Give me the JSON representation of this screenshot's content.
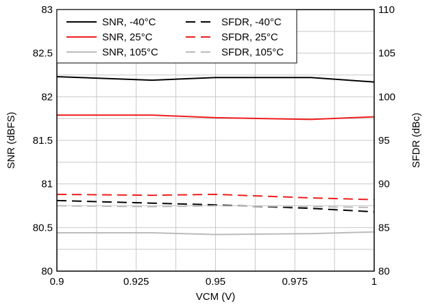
{
  "chart_data": {
    "type": "line",
    "title": "",
    "xlabel": "VCM (V)",
    "ylabel_left": "SNR (dBFS)",
    "ylabel_right": "SFDR (dBc)",
    "xlim": [
      0.9,
      1.0
    ],
    "ylim_left": [
      80,
      83
    ],
    "ylim_right": [
      80,
      110
    ],
    "x_ticks": [
      "0.9",
      "0.925",
      "0.95",
      "0.975",
      "1"
    ],
    "y_left_ticks": [
      "80",
      "80.5",
      "81",
      "81.5",
      "82",
      "82.5",
      "83"
    ],
    "y_right_ticks": [
      "80",
      "85",
      "90",
      "95",
      "100",
      "105",
      "110"
    ],
    "grid": true,
    "legend_position": "top-left",
    "series": [
      {
        "name": "SNR, -40°C",
        "axis": "left",
        "color": "#000000",
        "dash": "solid",
        "x": [
          0.9,
          0.93,
          0.95,
          0.98,
          1.0
        ],
        "values": [
          82.23,
          82.19,
          82.22,
          82.22,
          82.17
        ]
      },
      {
        "name": "SFDR, -40°C",
        "axis": "right",
        "color": "#000000",
        "dash": "dashed",
        "x": [
          0.9,
          0.93,
          0.95,
          0.98,
          1.0
        ],
        "values": [
          88.1,
          87.8,
          87.6,
          87.2,
          86.8
        ]
      },
      {
        "name": "SNR, 25°C",
        "axis": "left",
        "color": "#ee1c1c",
        "dash": "solid",
        "x": [
          0.9,
          0.93,
          0.95,
          0.98,
          1.0
        ],
        "values": [
          81.79,
          81.79,
          81.76,
          81.74,
          81.77
        ]
      },
      {
        "name": "SFDR, 25°C",
        "axis": "right",
        "color": "#ee1c1c",
        "dash": "dashed",
        "x": [
          0.9,
          0.93,
          0.95,
          0.98,
          1.0
        ],
        "values": [
          88.8,
          88.7,
          88.8,
          88.4,
          88.2
        ]
      },
      {
        "name": "SNR, 105°C",
        "axis": "left",
        "color": "#bbbbbb",
        "dash": "solid",
        "x": [
          0.9,
          0.93,
          0.95,
          0.98,
          1.0
        ],
        "values": [
          80.44,
          80.44,
          80.42,
          80.43,
          80.45
        ]
      },
      {
        "name": "SFDR, 105°C",
        "axis": "right",
        "color": "#bbbbbb",
        "dash": "dashed",
        "x": [
          0.9,
          0.93,
          0.95,
          0.98,
          1.0
        ],
        "values": [
          87.5,
          87.4,
          87.5,
          87.4,
          87.3
        ]
      }
    ]
  }
}
